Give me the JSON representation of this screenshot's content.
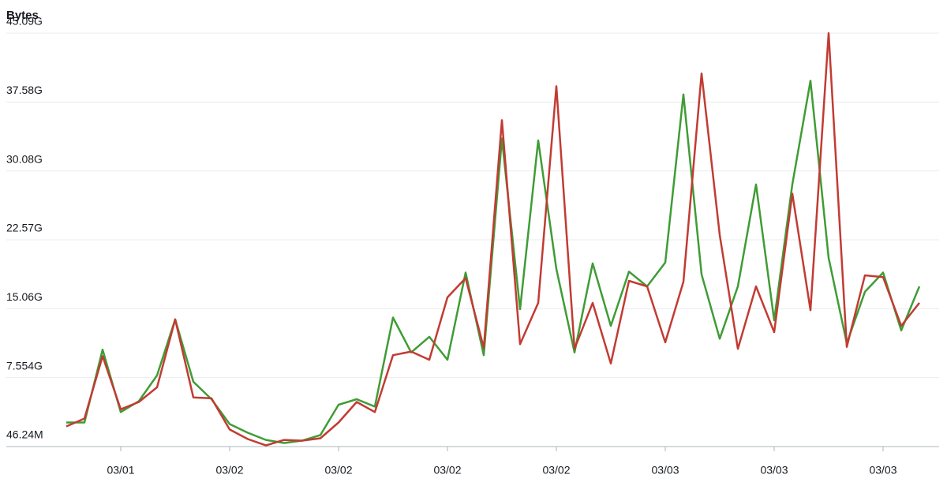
{
  "chart_data": {
    "type": "line",
    "title": "Bytes",
    "categories": [
      null,
      null,
      null,
      "03/01",
      null,
      null,
      null,
      null,
      null,
      "03/02",
      null,
      null,
      null,
      null,
      null,
      "03/02",
      null,
      null,
      null,
      null,
      null,
      "03/02",
      null,
      null,
      null,
      null,
      null,
      "03/02",
      null,
      null,
      null,
      null,
      null,
      "03/03",
      null,
      null,
      null,
      null,
      null,
      "03/03",
      null,
      null,
      null,
      null,
      null,
      "03/03",
      null,
      null
    ],
    "series": [
      {
        "color": "#3f9c35",
        "values": [
          2.67,
          2.67,
          10.6,
          3.8,
          5.0,
          7.8,
          13.9,
          7.1,
          5.2,
          2.5,
          1.55,
          0.77,
          0.43,
          0.69,
          1.3,
          4.6,
          5.2,
          4.4,
          14.1,
          10.3,
          12.0,
          9.5,
          19.0,
          10.0,
          33.6,
          15.0,
          33.4,
          19.4,
          10.3,
          20.0,
          13.2,
          19.1,
          17.5,
          20.1,
          38.4,
          18.8,
          11.8,
          17.5,
          28.6,
          13.8,
          28.6,
          39.9,
          20.6,
          11.3,
          16.9,
          19.0,
          12.7,
          17.5
        ]
      },
      {
        "color": "#c23b33",
        "values": [
          2.24,
          3.1,
          9.9,
          4.1,
          4.9,
          6.5,
          13.9,
          5.4,
          5.3,
          1.9,
          0.86,
          0.17,
          0.77,
          0.69,
          0.95,
          2.67,
          4.9,
          3.8,
          10.0,
          10.4,
          9.5,
          16.3,
          18.4,
          10.8,
          35.6,
          11.2,
          15.7,
          39.3,
          10.7,
          15.7,
          9.1,
          18.1,
          17.5,
          11.4,
          18.0,
          40.7,
          23.1,
          10.7,
          17.5,
          12.5,
          27.6,
          14.9,
          45.09,
          10.9,
          18.7,
          18.5,
          13.2,
          15.7
        ]
      }
    ],
    "ylim": [
      0.04624,
      45.09
    ],
    "yticks": [
      {
        "value": 0.04624,
        "label": "46.24M"
      },
      {
        "value": 7.554,
        "label": "7.554G"
      },
      {
        "value": 15.06,
        "label": "15.06G"
      },
      {
        "value": 22.57,
        "label": "22.57G"
      },
      {
        "value": 30.08,
        "label": "30.08G"
      },
      {
        "value": 37.58,
        "label": "37.58G"
      },
      {
        "value": 45.09,
        "label": "45.09G"
      }
    ],
    "grid": true
  }
}
